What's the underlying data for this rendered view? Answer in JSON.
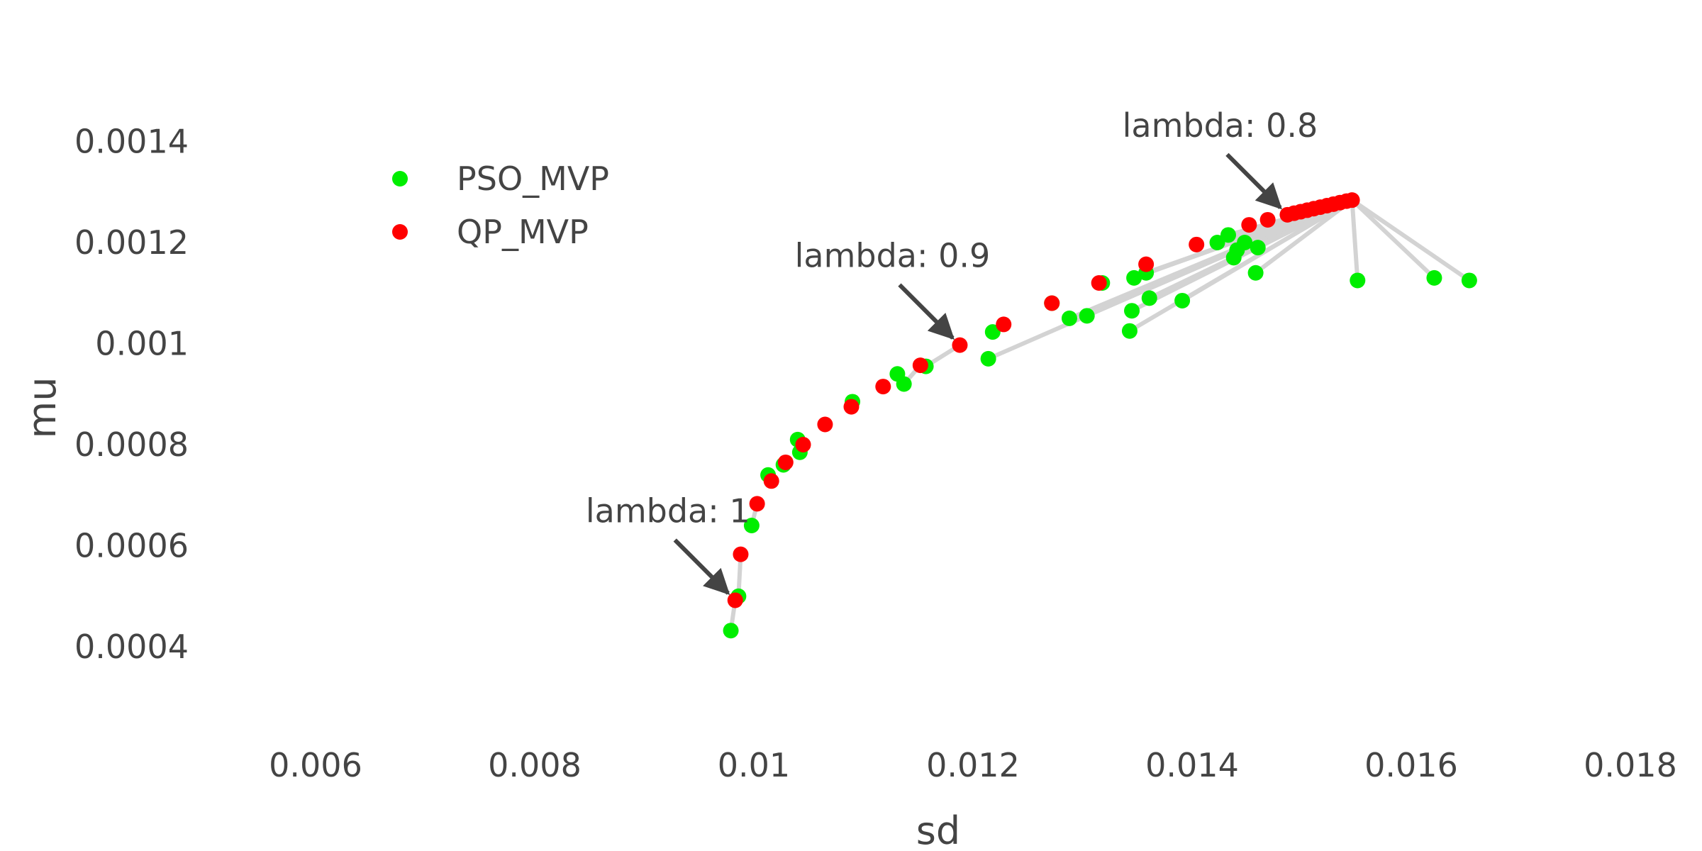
{
  "chart_data": {
    "type": "scatter",
    "title": "",
    "xlabel": "sd",
    "ylabel": "mu",
    "xlim": [
      0.0045,
      0.0185
    ],
    "ylim": [
      0.00027,
      0.0015
    ],
    "x_ticks": [
      0.006,
      0.008,
      0.01,
      0.012,
      0.014,
      0.016,
      0.018
    ],
    "x_tick_labels": [
      "0.006",
      "0.008",
      "0.01",
      "0.012",
      "0.014",
      "0.016",
      "0.018"
    ],
    "y_ticks": [
      0.0004,
      0.0006,
      0.0008,
      0.001,
      0.0012,
      0.0014
    ],
    "y_tick_labels": [
      "0.0004",
      "0.0006",
      "0.0008",
      "0.001",
      "0.0012",
      "0.0014"
    ],
    "grid": false,
    "legend_position": "top-left",
    "series": [
      {
        "name": "PSO_MVP",
        "color": "#00ee00",
        "points": [
          [
            0.00979,
            0.000432
          ],
          [
            0.00986,
            0.0005
          ],
          [
            0.00998,
            0.00064
          ],
          [
            0.01013,
            0.00074
          ],
          [
            0.01027,
            0.00076
          ],
          [
            0.0104,
            0.00081
          ],
          [
            0.01042,
            0.000785
          ],
          [
            0.0109,
            0.000885
          ],
          [
            0.01131,
            0.00094
          ],
          [
            0.01137,
            0.00092
          ],
          [
            0.01157,
            0.000955
          ],
          [
            0.01214,
            0.00097
          ],
          [
            0.01218,
            0.001023
          ],
          [
            0.01272,
            0.00108
          ],
          [
            0.01288,
            0.00105
          ],
          [
            0.01304,
            0.001055
          ],
          [
            0.01318,
            0.00112
          ],
          [
            0.01343,
            0.001025
          ],
          [
            0.01345,
            0.001065
          ],
          [
            0.01347,
            0.00113
          ],
          [
            0.01358,
            0.00114
          ],
          [
            0.01361,
            0.00109
          ],
          [
            0.01391,
            0.001085
          ],
          [
            0.01423,
            0.0012
          ],
          [
            0.01433,
            0.001215
          ],
          [
            0.01438,
            0.00117
          ],
          [
            0.01441,
            0.001185
          ],
          [
            0.01448,
            0.0012
          ],
          [
            0.01458,
            0.00114
          ],
          [
            0.0146,
            0.00119
          ],
          [
            0.01551,
            0.001125
          ],
          [
            0.01621,
            0.00113
          ],
          [
            0.01653,
            0.001125
          ]
        ]
      },
      {
        "name": "QP_MVP",
        "color": "#ff0000",
        "points": [
          [
            0.00983,
            0.000492
          ],
          [
            0.00988,
            0.000583
          ],
          [
            0.01003,
            0.000683
          ],
          [
            0.01016,
            0.000728
          ],
          [
            0.01029,
            0.000765
          ],
          [
            0.01045,
            0.0008
          ],
          [
            0.01065,
            0.00084
          ],
          [
            0.01089,
            0.000875
          ],
          [
            0.01118,
            0.000915
          ],
          [
            0.01152,
            0.000957
          ],
          [
            0.01188,
            0.000997
          ],
          [
            0.01228,
            0.001038
          ],
          [
            0.01272,
            0.00108
          ],
          [
            0.01315,
            0.00112
          ],
          [
            0.01358,
            0.001157
          ],
          [
            0.01404,
            0.001196
          ],
          [
            0.01452,
            0.001235
          ],
          [
            0.01469,
            0.001245
          ],
          [
            0.01487,
            0.001255
          ],
          [
            0.01493,
            0.001258
          ],
          [
            0.01499,
            0.001261
          ],
          [
            0.01505,
            0.001264
          ],
          [
            0.01511,
            0.001267
          ],
          [
            0.01517,
            0.00127
          ],
          [
            0.01523,
            0.001273
          ],
          [
            0.01529,
            0.001276
          ],
          [
            0.01535,
            0.001279
          ],
          [
            0.01541,
            0.001282
          ],
          [
            0.01546,
            0.001284
          ]
        ]
      }
    ],
    "connectors": [
      [
        [
          0.00979,
          0.000432
        ],
        [
          0.00983,
          0.000492
        ]
      ],
      [
        [
          0.00986,
          0.0005
        ],
        [
          0.00988,
          0.000583
        ]
      ],
      [
        [
          0.00998,
          0.00064
        ],
        [
          0.01003,
          0.000683
        ]
      ],
      [
        [
          0.01013,
          0.00074
        ],
        [
          0.01016,
          0.000728
        ]
      ],
      [
        [
          0.01027,
          0.00076
        ],
        [
          0.01029,
          0.000765
        ]
      ],
      [
        [
          0.01042,
          0.000785
        ],
        [
          0.01045,
          0.0008
        ]
      ],
      [
        [
          0.0109,
          0.000885
        ],
        [
          0.01089,
          0.000875
        ]
      ],
      [
        [
          0.01137,
          0.00092
        ],
        [
          0.01152,
          0.000957
        ]
      ],
      [
        [
          0.01157,
          0.000955
        ],
        [
          0.01188,
          0.000997
        ]
      ],
      [
        [
          0.01214,
          0.00097
        ],
        [
          0.01546,
          0.001284
        ]
      ],
      [
        [
          0.01218,
          0.001023
        ],
        [
          0.01228,
          0.001038
        ]
      ],
      [
        [
          0.01288,
          0.00105
        ],
        [
          0.01546,
          0.001284
        ]
      ],
      [
        [
          0.01304,
          0.001055
        ],
        [
          0.01546,
          0.001284
        ]
      ],
      [
        [
          0.01318,
          0.00112
        ],
        [
          0.01315,
          0.00112
        ]
      ],
      [
        [
          0.01343,
          0.001025
        ],
        [
          0.01546,
          0.001284
        ]
      ],
      [
        [
          0.01345,
          0.001065
        ],
        [
          0.01546,
          0.001284
        ]
      ],
      [
        [
          0.01347,
          0.00113
        ],
        [
          0.01546,
          0.001284
        ]
      ],
      [
        [
          0.01358,
          0.00114
        ],
        [
          0.01546,
          0.001284
        ]
      ],
      [
        [
          0.01361,
          0.00109
        ],
        [
          0.01546,
          0.001284
        ]
      ],
      [
        [
          0.01391,
          0.001085
        ],
        [
          0.01546,
          0.001284
        ]
      ],
      [
        [
          0.01423,
          0.0012
        ],
        [
          0.01546,
          0.001284
        ]
      ],
      [
        [
          0.01433,
          0.001215
        ],
        [
          0.01546,
          0.001284
        ]
      ],
      [
        [
          0.01438,
          0.00117
        ],
        [
          0.01546,
          0.001284
        ]
      ],
      [
        [
          0.01448,
          0.0012
        ],
        [
          0.01546,
          0.001284
        ]
      ],
      [
        [
          0.01458,
          0.00114
        ],
        [
          0.01546,
          0.001284
        ]
      ],
      [
        [
          0.0146,
          0.00119
        ],
        [
          0.01546,
          0.001284
        ]
      ],
      [
        [
          0.01551,
          0.001125
        ],
        [
          0.01546,
          0.001284
        ]
      ],
      [
        [
          0.01621,
          0.00113
        ],
        [
          0.01546,
          0.001284
        ]
      ],
      [
        [
          0.01653,
          0.001125
        ],
        [
          0.01546,
          0.001284
        ]
      ]
    ],
    "annotations": [
      {
        "text": "lambda: 1",
        "x": 0.00983,
        "y": 0.000492
      },
      {
        "text": "lambda: 0.9",
        "x": 0.01188,
        "y": 0.000997
      },
      {
        "text": "lambda: 0.8",
        "x": 0.01487,
        "y": 0.001255
      }
    ]
  }
}
